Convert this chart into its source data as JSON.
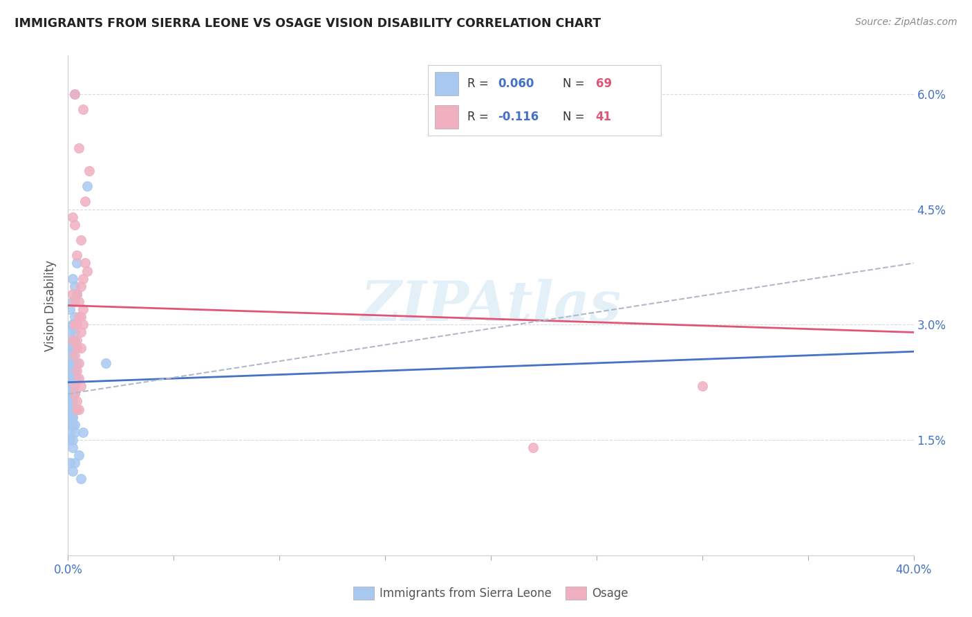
{
  "title": "IMMIGRANTS FROM SIERRA LEONE VS OSAGE VISION DISABILITY CORRELATION CHART",
  "source": "Source: ZipAtlas.com",
  "ylabel": "Vision Disability",
  "watermark": "ZIPAtlas",
  "legend_blue_r": "0.060",
  "legend_blue_n": "69",
  "legend_pink_r": "-0.116",
  "legend_pink_n": "41",
  "xlim": [
    0.0,
    0.4
  ],
  "ylim": [
    0.0,
    0.065
  ],
  "color_blue": "#a8c8f0",
  "color_pink": "#f0b0c0",
  "line_blue": "#4472c4",
  "line_pink": "#e05575",
  "line_dashed_color": "#b0b8c8",
  "background_color": "#ffffff",
  "grid_color": "#d8d8e8",
  "blue_scatter_x": [
    0.003,
    0.009,
    0.004,
    0.002,
    0.003,
    0.004,
    0.002,
    0.001,
    0.003,
    0.002,
    0.002,
    0.003,
    0.001,
    0.002,
    0.003,
    0.002,
    0.001,
    0.003,
    0.002,
    0.004,
    0.001,
    0.002,
    0.003,
    0.002,
    0.001,
    0.003,
    0.002,
    0.001,
    0.002,
    0.003,
    0.001,
    0.002,
    0.001,
    0.003,
    0.002,
    0.001,
    0.002,
    0.003,
    0.001,
    0.002,
    0.001,
    0.002,
    0.001,
    0.002,
    0.003,
    0.001,
    0.002,
    0.001,
    0.002,
    0.001,
    0.002,
    0.001,
    0.002,
    0.003,
    0.001,
    0.002,
    0.001,
    0.003,
    0.007,
    0.002,
    0.001,
    0.002,
    0.005,
    0.001,
    0.003,
    0.002,
    0.006,
    0.004,
    0.018
  ],
  "blue_scatter_y": [
    0.06,
    0.048,
    0.038,
    0.036,
    0.035,
    0.034,
    0.033,
    0.032,
    0.031,
    0.03,
    0.03,
    0.029,
    0.029,
    0.028,
    0.028,
    0.027,
    0.027,
    0.027,
    0.026,
    0.025,
    0.025,
    0.025,
    0.024,
    0.024,
    0.024,
    0.024,
    0.023,
    0.023,
    0.023,
    0.023,
    0.022,
    0.022,
    0.022,
    0.022,
    0.022,
    0.021,
    0.021,
    0.021,
    0.021,
    0.02,
    0.02,
    0.02,
    0.02,
    0.02,
    0.019,
    0.019,
    0.019,
    0.019,
    0.019,
    0.018,
    0.018,
    0.018,
    0.018,
    0.017,
    0.017,
    0.017,
    0.016,
    0.016,
    0.016,
    0.015,
    0.015,
    0.014,
    0.013,
    0.012,
    0.012,
    0.011,
    0.01,
    0.023,
    0.025
  ],
  "pink_scatter_x": [
    0.003,
    0.007,
    0.005,
    0.01,
    0.008,
    0.002,
    0.003,
    0.006,
    0.004,
    0.008,
    0.009,
    0.007,
    0.006,
    0.004,
    0.002,
    0.005,
    0.003,
    0.007,
    0.005,
    0.006,
    0.004,
    0.007,
    0.004,
    0.003,
    0.006,
    0.002,
    0.004,
    0.006,
    0.004,
    0.3,
    0.22,
    0.003,
    0.005,
    0.004,
    0.005,
    0.003,
    0.006,
    0.003,
    0.004,
    0.004,
    0.005
  ],
  "pink_scatter_y": [
    0.06,
    0.058,
    0.053,
    0.05,
    0.046,
    0.044,
    0.043,
    0.041,
    0.039,
    0.038,
    0.037,
    0.036,
    0.035,
    0.034,
    0.034,
    0.033,
    0.033,
    0.032,
    0.031,
    0.031,
    0.03,
    0.03,
    0.03,
    0.03,
    0.029,
    0.028,
    0.028,
    0.027,
    0.027,
    0.022,
    0.014,
    0.026,
    0.025,
    0.024,
    0.023,
    0.022,
    0.022,
    0.021,
    0.02,
    0.019,
    0.019
  ],
  "blue_trend_x": [
    0.0,
    0.4
  ],
  "blue_trend_y": [
    0.0225,
    0.0265
  ],
  "pink_trend_x": [
    0.0,
    0.4
  ],
  "pink_trend_y": [
    0.0325,
    0.029
  ],
  "dashed_trend_x": [
    0.0,
    0.4
  ],
  "dashed_trend_y": [
    0.021,
    0.038
  ],
  "xtick_minor_positions": [
    0.05,
    0.1,
    0.15,
    0.2,
    0.25,
    0.3,
    0.35
  ],
  "xtick_label_left": "0.0%",
  "xtick_label_right": "40.0%",
  "yticks": [
    0.0,
    0.015,
    0.03,
    0.045,
    0.06
  ],
  "yticklabels_right": [
    "",
    "1.5%",
    "3.0%",
    "4.5%",
    "6.0%"
  ],
  "legend_bottom": [
    "Immigrants from Sierra Leone",
    "Osage"
  ]
}
